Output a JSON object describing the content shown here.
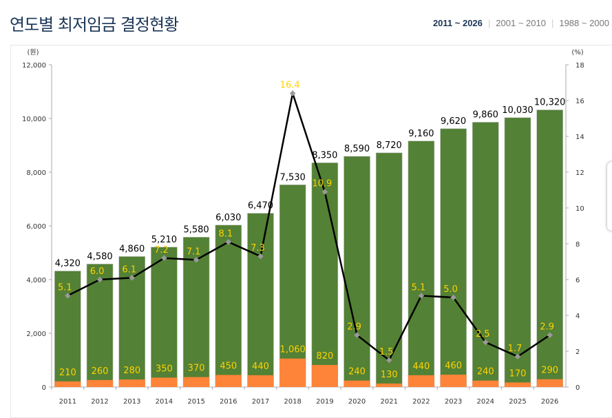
{
  "header": {
    "title": "연도별 최저임금 결정현황",
    "tabs": [
      {
        "label": "2011 ~ 2026",
        "active": true
      },
      {
        "label": "2001 ~ 2010",
        "active": false
      },
      {
        "label": "1988 ~ 2000",
        "active": false
      }
    ]
  },
  "chart_data": {
    "type": "bar",
    "categories": [
      "2011",
      "2012",
      "2013",
      "2014",
      "2015",
      "2016",
      "2017",
      "2018",
      "2019",
      "2020",
      "2021",
      "2022",
      "2023",
      "2024",
      "2025",
      "2026"
    ],
    "series": [
      {
        "type": "bar",
        "axis": "left",
        "color": "#538135",
        "values": [
          4320,
          4580,
          4860,
          5210,
          5580,
          6030,
          6470,
          7530,
          8350,
          8590,
          8720,
          9160,
          9620,
          9860,
          10030,
          10320
        ]
      },
      {
        "type": "bar",
        "axis": "left",
        "color": "#fd8438",
        "values": [
          210,
          260,
          280,
          350,
          370,
          450,
          440,
          1060,
          820,
          240,
          130,
          440,
          460,
          240,
          170,
          290
        ]
      },
      {
        "type": "line",
        "axis": "right",
        "color": "#000000",
        "values": [
          5.1,
          6.0,
          6.1,
          7.2,
          7.1,
          8.1,
          7.3,
          16.4,
          10.9,
          2.9,
          1.5,
          5.1,
          5.0,
          2.5,
          1.7,
          2.9
        ]
      }
    ],
    "ylabel": "(원)",
    "y2label": "(%)",
    "ylim": [
      0,
      12000
    ],
    "yticks": [
      "0",
      "2,000",
      "4,000",
      "6,000",
      "8,000",
      "10,000",
      "12,000"
    ],
    "y2lim": [
      0,
      18
    ],
    "y2ticks": [
      "0",
      "2",
      "4",
      "6",
      "8",
      "10",
      "12",
      "14",
      "16",
      "18"
    ],
    "label_color": "#ffd200",
    "grid": false
  }
}
